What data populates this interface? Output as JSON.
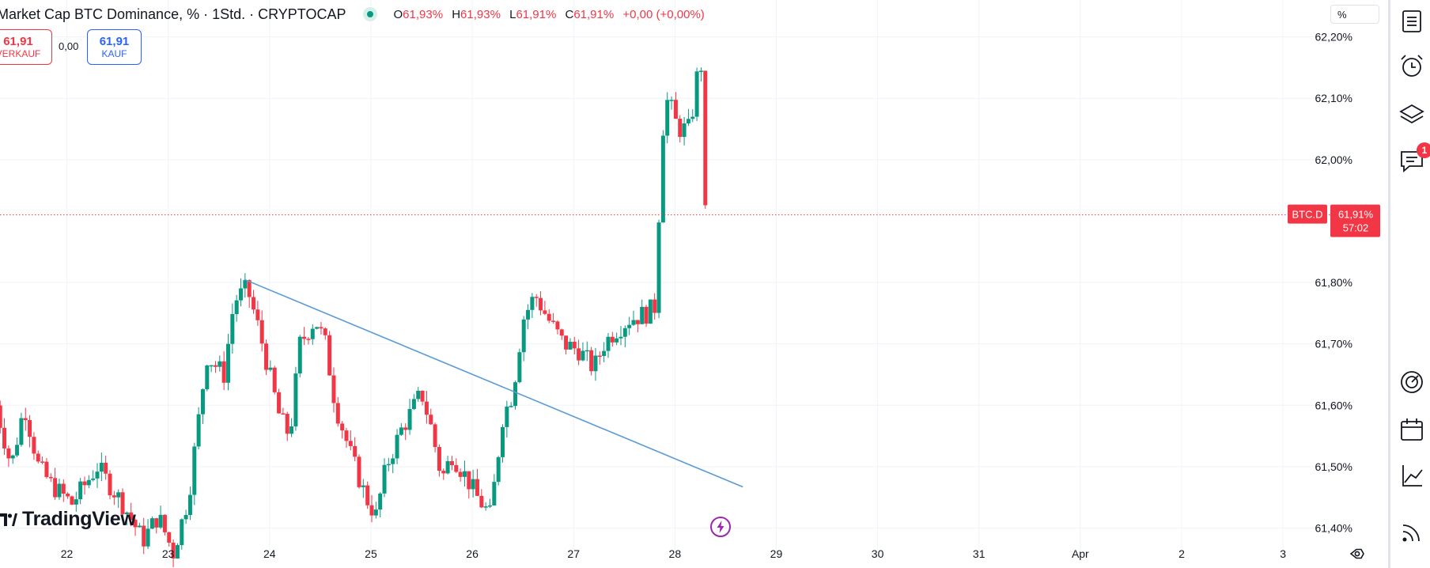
{
  "header": {
    "title": "Market Cap BTC Dominance, % · 1Std. · CRYPTOCAP",
    "ohlc": [
      {
        "label": "O",
        "value": "61,93%"
      },
      {
        "label": "H",
        "value": "61,93%"
      },
      {
        "label": "L",
        "value": "61,91%"
      },
      {
        "label": "C",
        "value": "61,91%"
      },
      {
        "label": "",
        "value": "+0,00 (+0,00%)"
      }
    ]
  },
  "trade": {
    "sell_price": "61,91",
    "sell_label": "VERKAUF",
    "spread": "0,00",
    "buy_price": "61,91",
    "buy_label": "KAUF"
  },
  "brand": "TradingView",
  "scale_button": "%",
  "price_tag": {
    "symbol": "BTC.D",
    "price": "61,91%",
    "countdown": "57:02"
  },
  "toolbar": {
    "icons": [
      "watchlist-icon",
      "alarm-clock-icon",
      "layers-icon",
      "chat-icon",
      "gauge-icon",
      "calendar-icon",
      "chart-line-icon",
      "broadcast-icon"
    ],
    "chat_badge": "1"
  },
  "colors": {
    "up": "#089981",
    "down": "#f23645",
    "trendline": "#5b9bd5",
    "grid": "#f0f3fa"
  },
  "chart_data": {
    "type": "candlestick",
    "symbol": "BTC.D",
    "interval": "1Std.",
    "y_ticks": [
      "62,20%",
      "62,10%",
      "62,00%",
      "61,80%",
      "61,70%",
      "61,60%",
      "61,50%",
      "61,40%"
    ],
    "y_tick_values": [
      62.2,
      62.1,
      62.0,
      61.8,
      61.7,
      61.6,
      61.5,
      61.4
    ],
    "x_ticks": [
      "22",
      "23",
      "24",
      "25",
      "26",
      "27",
      "28",
      "29",
      "30",
      "31",
      "Apr",
      "2",
      "3"
    ],
    "x_tick_days": [
      22,
      23,
      24,
      25,
      26,
      27,
      28,
      29,
      30,
      31,
      32,
      33,
      34
    ],
    "ylim": [
      61.335,
      62.26
    ],
    "xlim": [
      21.34,
      34.53
    ],
    "grid": true,
    "last_price": 61.91,
    "trendline": {
      "from": {
        "day": 23.75,
        "price": 61.805
      },
      "to": {
        "day": 24.15,
        "price": 61.76
      },
      "to_end": {
        "day": 28.67,
        "price": 61.467
      }
    },
    "anchors": [
      [
        21.3,
        61.6
      ],
      [
        21.45,
        61.5
      ],
      [
        21.58,
        61.6
      ],
      [
        21.72,
        61.5
      ],
      [
        21.85,
        61.47
      ],
      [
        22.05,
        61.44
      ],
      [
        22.3,
        61.5
      ],
      [
        22.55,
        61.44
      ],
      [
        22.75,
        61.38
      ],
      [
        22.9,
        61.42
      ],
      [
        23.05,
        61.36
      ],
      [
        23.2,
        61.45
      ],
      [
        23.38,
        61.68
      ],
      [
        23.55,
        61.65
      ],
      [
        23.65,
        61.77
      ],
      [
        23.78,
        61.79
      ],
      [
        23.9,
        61.72
      ],
      [
        24.1,
        61.58
      ],
      [
        24.2,
        61.55
      ],
      [
        24.3,
        61.7
      ],
      [
        24.45,
        61.74
      ],
      [
        24.55,
        61.7
      ],
      [
        24.65,
        61.6
      ],
      [
        24.8,
        61.52
      ],
      [
        24.95,
        61.45
      ],
      [
        25.05,
        61.42
      ],
      [
        25.15,
        61.5
      ],
      [
        25.3,
        61.56
      ],
      [
        25.5,
        61.62
      ],
      [
        25.6,
        61.56
      ],
      [
        25.7,
        61.48
      ],
      [
        25.8,
        61.52
      ],
      [
        25.95,
        61.48
      ],
      [
        26.05,
        61.45
      ],
      [
        26.18,
        61.42
      ],
      [
        26.3,
        61.58
      ],
      [
        26.4,
        61.62
      ],
      [
        26.5,
        61.74
      ],
      [
        26.62,
        61.78
      ],
      [
        26.75,
        61.74
      ],
      [
        26.9,
        61.7
      ],
      [
        27.05,
        61.69
      ],
      [
        27.2,
        61.66
      ],
      [
        27.3,
        61.7
      ],
      [
        27.4,
        61.72
      ],
      [
        27.55,
        61.74
      ],
      [
        27.72,
        61.75
      ],
      [
        27.8,
        61.76
      ],
      [
        27.88,
        62.05
      ],
      [
        27.93,
        62.1
      ],
      [
        28.03,
        62.05
      ],
      [
        28.15,
        62.05
      ],
      [
        28.23,
        62.15
      ],
      [
        28.27,
        62.155
      ],
      [
        28.3,
        61.91
      ]
    ]
  }
}
